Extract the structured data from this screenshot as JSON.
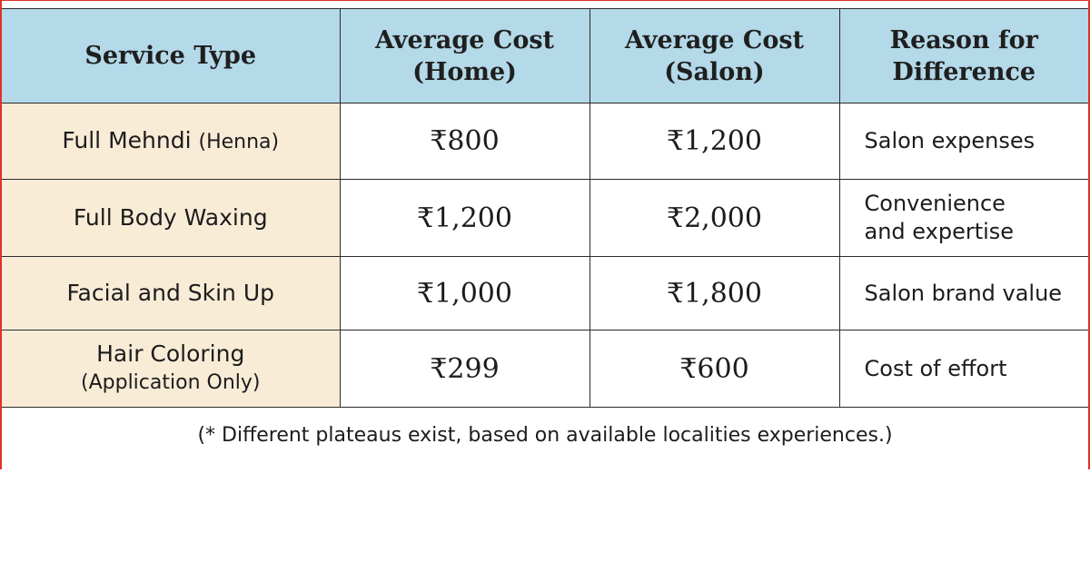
{
  "table": {
    "headers": {
      "service_type": "Service Type",
      "home_cost_line1": "Average Cost",
      "home_cost_line2": "(Home)",
      "salon_cost_line1": "Average Cost",
      "salon_cost_line2": "(Salon)",
      "reason_line1": "Reason for",
      "reason_line2": "Difference"
    },
    "rows": [
      {
        "service": "Full Mehndi",
        "service_paren": "(Henna)",
        "home": "₹800",
        "salon": "₹1,200",
        "reason_line1": "Salon expenses",
        "reason_line2": ""
      },
      {
        "service": "Full Body Waxing",
        "service_paren": "",
        "home": "₹1,200",
        "salon": "₹2,000",
        "reason_line1": "Convenience",
        "reason_line2": "and expertise"
      },
      {
        "service": "Facial and Skin Up",
        "service_paren": "",
        "home": "₹1,000",
        "salon": "₹1,800",
        "reason_line1": "Salon brand value",
        "reason_line2": ""
      },
      {
        "service": "Hair Coloring",
        "service_paren": "(Application Only)",
        "home": "₹299",
        "salon": "₹600",
        "reason_line1": "Cost of effort",
        "reason_line2": ""
      }
    ]
  },
  "footnote": "(* Different plateaus exist, based on available localities experiences.)",
  "colors": {
    "header_bg": "#b4d9e8",
    "service_col_bg": "#f9ecd7",
    "border_accent": "#e0302c"
  }
}
